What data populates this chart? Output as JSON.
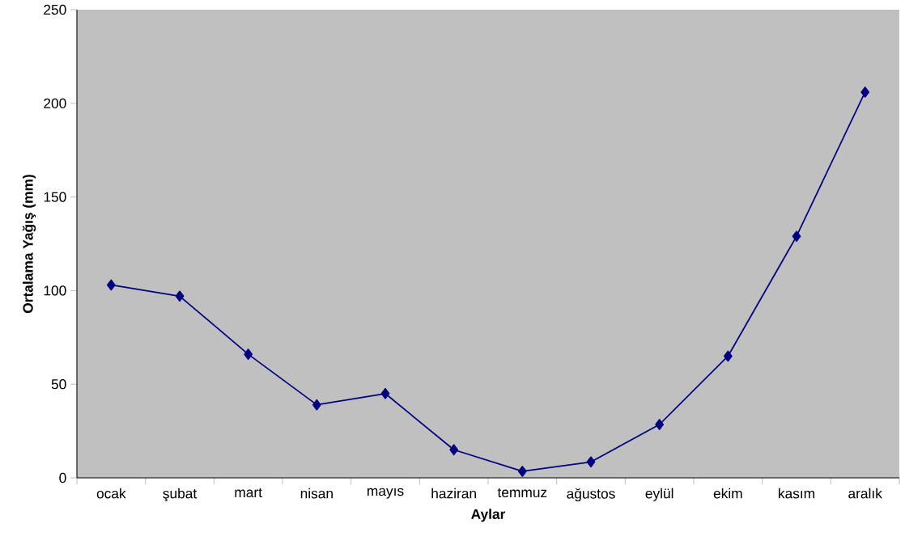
{
  "chart_data": {
    "type": "line",
    "xlabel": "Aylar",
    "ylabel": "Ortalama Yağış (mm)",
    "categories": [
      "ocak",
      "şubat",
      "mart",
      "nisan",
      "mayıs",
      "haziran",
      "temmuz",
      "ağustos",
      "eylül",
      "ekim",
      "kasım",
      "aralık"
    ],
    "values": [
      103,
      97,
      66,
      39,
      45,
      15,
      3.5,
      8.5,
      28.5,
      65,
      129,
      206
    ],
    "color": "#000080",
    "marker": "diamond",
    "line_style": "solid",
    "grid": false,
    "ylim": [
      0,
      250
    ],
    "yticks": [
      0,
      50,
      100,
      150,
      200,
      250
    ]
  }
}
